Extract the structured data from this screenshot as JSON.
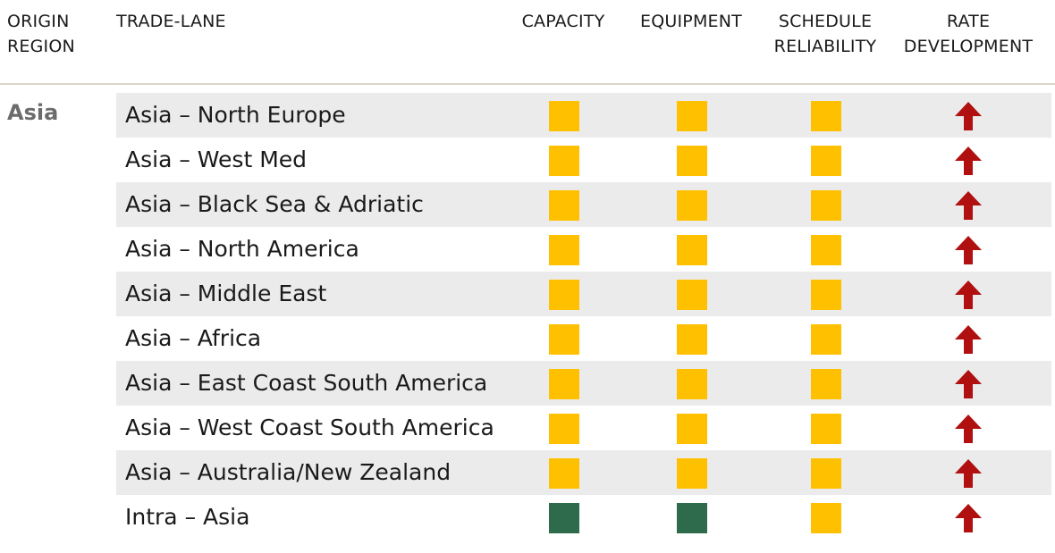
{
  "headers": {
    "origin_region": [
      "ORIGIN",
      "REGION"
    ],
    "trade_lane": "TRADE-LANE",
    "capacity": "CAPACITY",
    "equipment": "EQUIPMENT",
    "schedule_reliability": [
      "SCHEDULE",
      "RELIABILITY"
    ],
    "rate_development": [
      "RATE",
      "DEVELOPMENT"
    ]
  },
  "region": "Asia",
  "colors": {
    "yellow": "#ffc000",
    "green": "#2e6b4c",
    "arrow_red": "#b01010",
    "row_shade": "#ebebeb"
  },
  "rows": [
    {
      "lane": "Asia – North Europe",
      "capacity": "yellow",
      "equipment": "yellow",
      "schedule_reliability": "yellow",
      "rate_development": "up"
    },
    {
      "lane": "Asia – West Med",
      "capacity": "yellow",
      "equipment": "yellow",
      "schedule_reliability": "yellow",
      "rate_development": "up"
    },
    {
      "lane": "Asia – Black Sea & Adriatic",
      "capacity": "yellow",
      "equipment": "yellow",
      "schedule_reliability": "yellow",
      "rate_development": "up"
    },
    {
      "lane": "Asia – North America",
      "capacity": "yellow",
      "equipment": "yellow",
      "schedule_reliability": "yellow",
      "rate_development": "up"
    },
    {
      "lane": "Asia – Middle East",
      "capacity": "yellow",
      "equipment": "yellow",
      "schedule_reliability": "yellow",
      "rate_development": "up"
    },
    {
      "lane": "Asia – Africa",
      "capacity": "yellow",
      "equipment": "yellow",
      "schedule_reliability": "yellow",
      "rate_development": "up"
    },
    {
      "lane": "Asia – East Coast South America",
      "capacity": "yellow",
      "equipment": "yellow",
      "schedule_reliability": "yellow",
      "rate_development": "up"
    },
    {
      "lane": "Asia – West Coast South America",
      "capacity": "yellow",
      "equipment": "yellow",
      "schedule_reliability": "yellow",
      "rate_development": "up"
    },
    {
      "lane": "Asia – Australia/New Zealand",
      "capacity": "yellow",
      "equipment": "yellow",
      "schedule_reliability": "yellow",
      "rate_development": "up"
    },
    {
      "lane": "Intra – Asia",
      "capacity": "green",
      "equipment": "green",
      "schedule_reliability": "yellow",
      "rate_development": "up"
    }
  ]
}
